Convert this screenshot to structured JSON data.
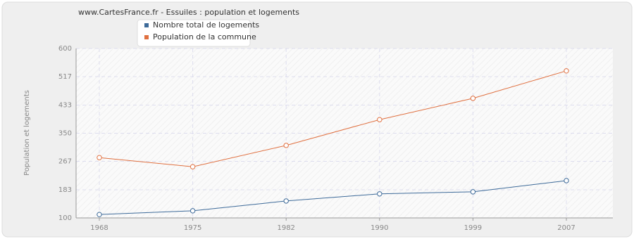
{
  "chart_data": {
    "type": "line",
    "title": "www.CartesFrance.fr - Essuiles : population et logements",
    "y_label": "Population et logements",
    "categories": [
      "1968",
      "1975",
      "1982",
      "1990",
      "1999",
      "2007"
    ],
    "series": [
      {
        "name": "Nombre total de logements",
        "color": "#3d6a99",
        "values": [
          110,
          121,
          150,
          171,
          177,
          210
        ]
      },
      {
        "name": "Population de la commune",
        "color": "#e07040",
        "values": [
          278,
          251,
          314,
          390,
          453,
          534
        ]
      }
    ],
    "ylim": [
      100,
      600
    ],
    "yticks": [
      100,
      183,
      267,
      350,
      433,
      517,
      600
    ],
    "grid": true
  }
}
